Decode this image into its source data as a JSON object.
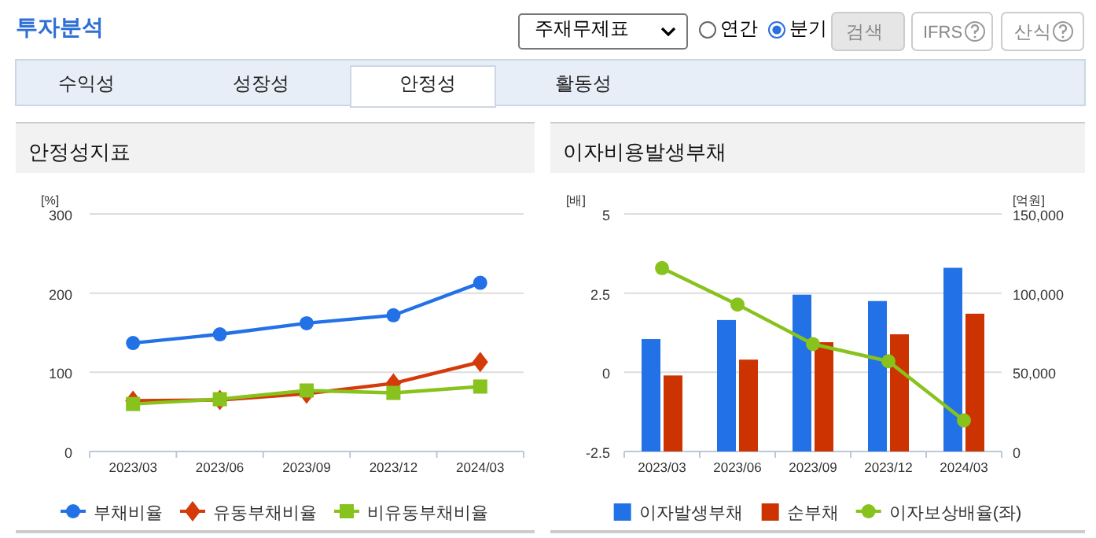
{
  "chart_data": [
    {
      "type": "line",
      "title": "안정성지표",
      "ylabel": "[%]",
      "categories": [
        "2023/03",
        "2023/06",
        "2023/09",
        "2023/12",
        "2024/03"
      ],
      "series": [
        {
          "name": "부채비율",
          "color": "#2271e6",
          "marker": "circle",
          "values": [
            137,
            148,
            162,
            172,
            213
          ]
        },
        {
          "name": "유동부채비율",
          "color": "#d43a0a",
          "marker": "diamond",
          "values": [
            64,
            65,
            73,
            86,
            113
          ]
        },
        {
          "name": "비유동부채비율",
          "color": "#88c21c",
          "marker": "square",
          "values": [
            60,
            66,
            77,
            74,
            82
          ]
        }
      ],
      "ylim": [
        0,
        300
      ],
      "yticks": [
        0,
        100,
        200,
        300
      ],
      "grid": "y",
      "legend": "bottom",
      "annotations": [
        "투자분석",
        "주재무제표",
        "연간",
        "분기",
        "검색",
        "IFRS",
        "산식",
        "수익성",
        "성장성",
        "안정성",
        "활동성"
      ]
    },
    {
      "type": "bar",
      "title": "이자비용발생부채",
      "ylabel": "[배]",
      "y2label": "[억원]",
      "categories": [
        "2023/03",
        "2023/06",
        "2023/09",
        "2023/12",
        "2024/03"
      ],
      "series": [
        {
          "name": "이자발생부채",
          "color": "#2271e6",
          "axis": "y2",
          "values": [
            71000,
            83000,
            99000,
            95000,
            116000
          ]
        },
        {
          "name": "순부채",
          "color": "#cc3300",
          "axis": "y2",
          "values": [
            48000,
            58000,
            69000,
            74000,
            87000
          ]
        },
        {
          "name": "이자보상배율(좌)",
          "type": "line",
          "color": "#88c21c",
          "marker": "circle",
          "values": [
            3.29,
            2.14,
            0.89,
            0.35,
            -1.52
          ]
        }
      ],
      "ylim": [
        -2.5,
        5
      ],
      "yticks": [
        -2.5,
        0,
        2.5,
        5
      ],
      "y2lim": [
        0,
        150000
      ],
      "y2ticks": [
        0,
        {
          "value": 50000,
          "label": "50,000"
        },
        {
          "value": 100000,
          "label": "100,000"
        },
        {
          "value": 150000,
          "label": "150,000"
        }
      ],
      "grid": "y",
      "legend": "bottom"
    }
  ]
}
